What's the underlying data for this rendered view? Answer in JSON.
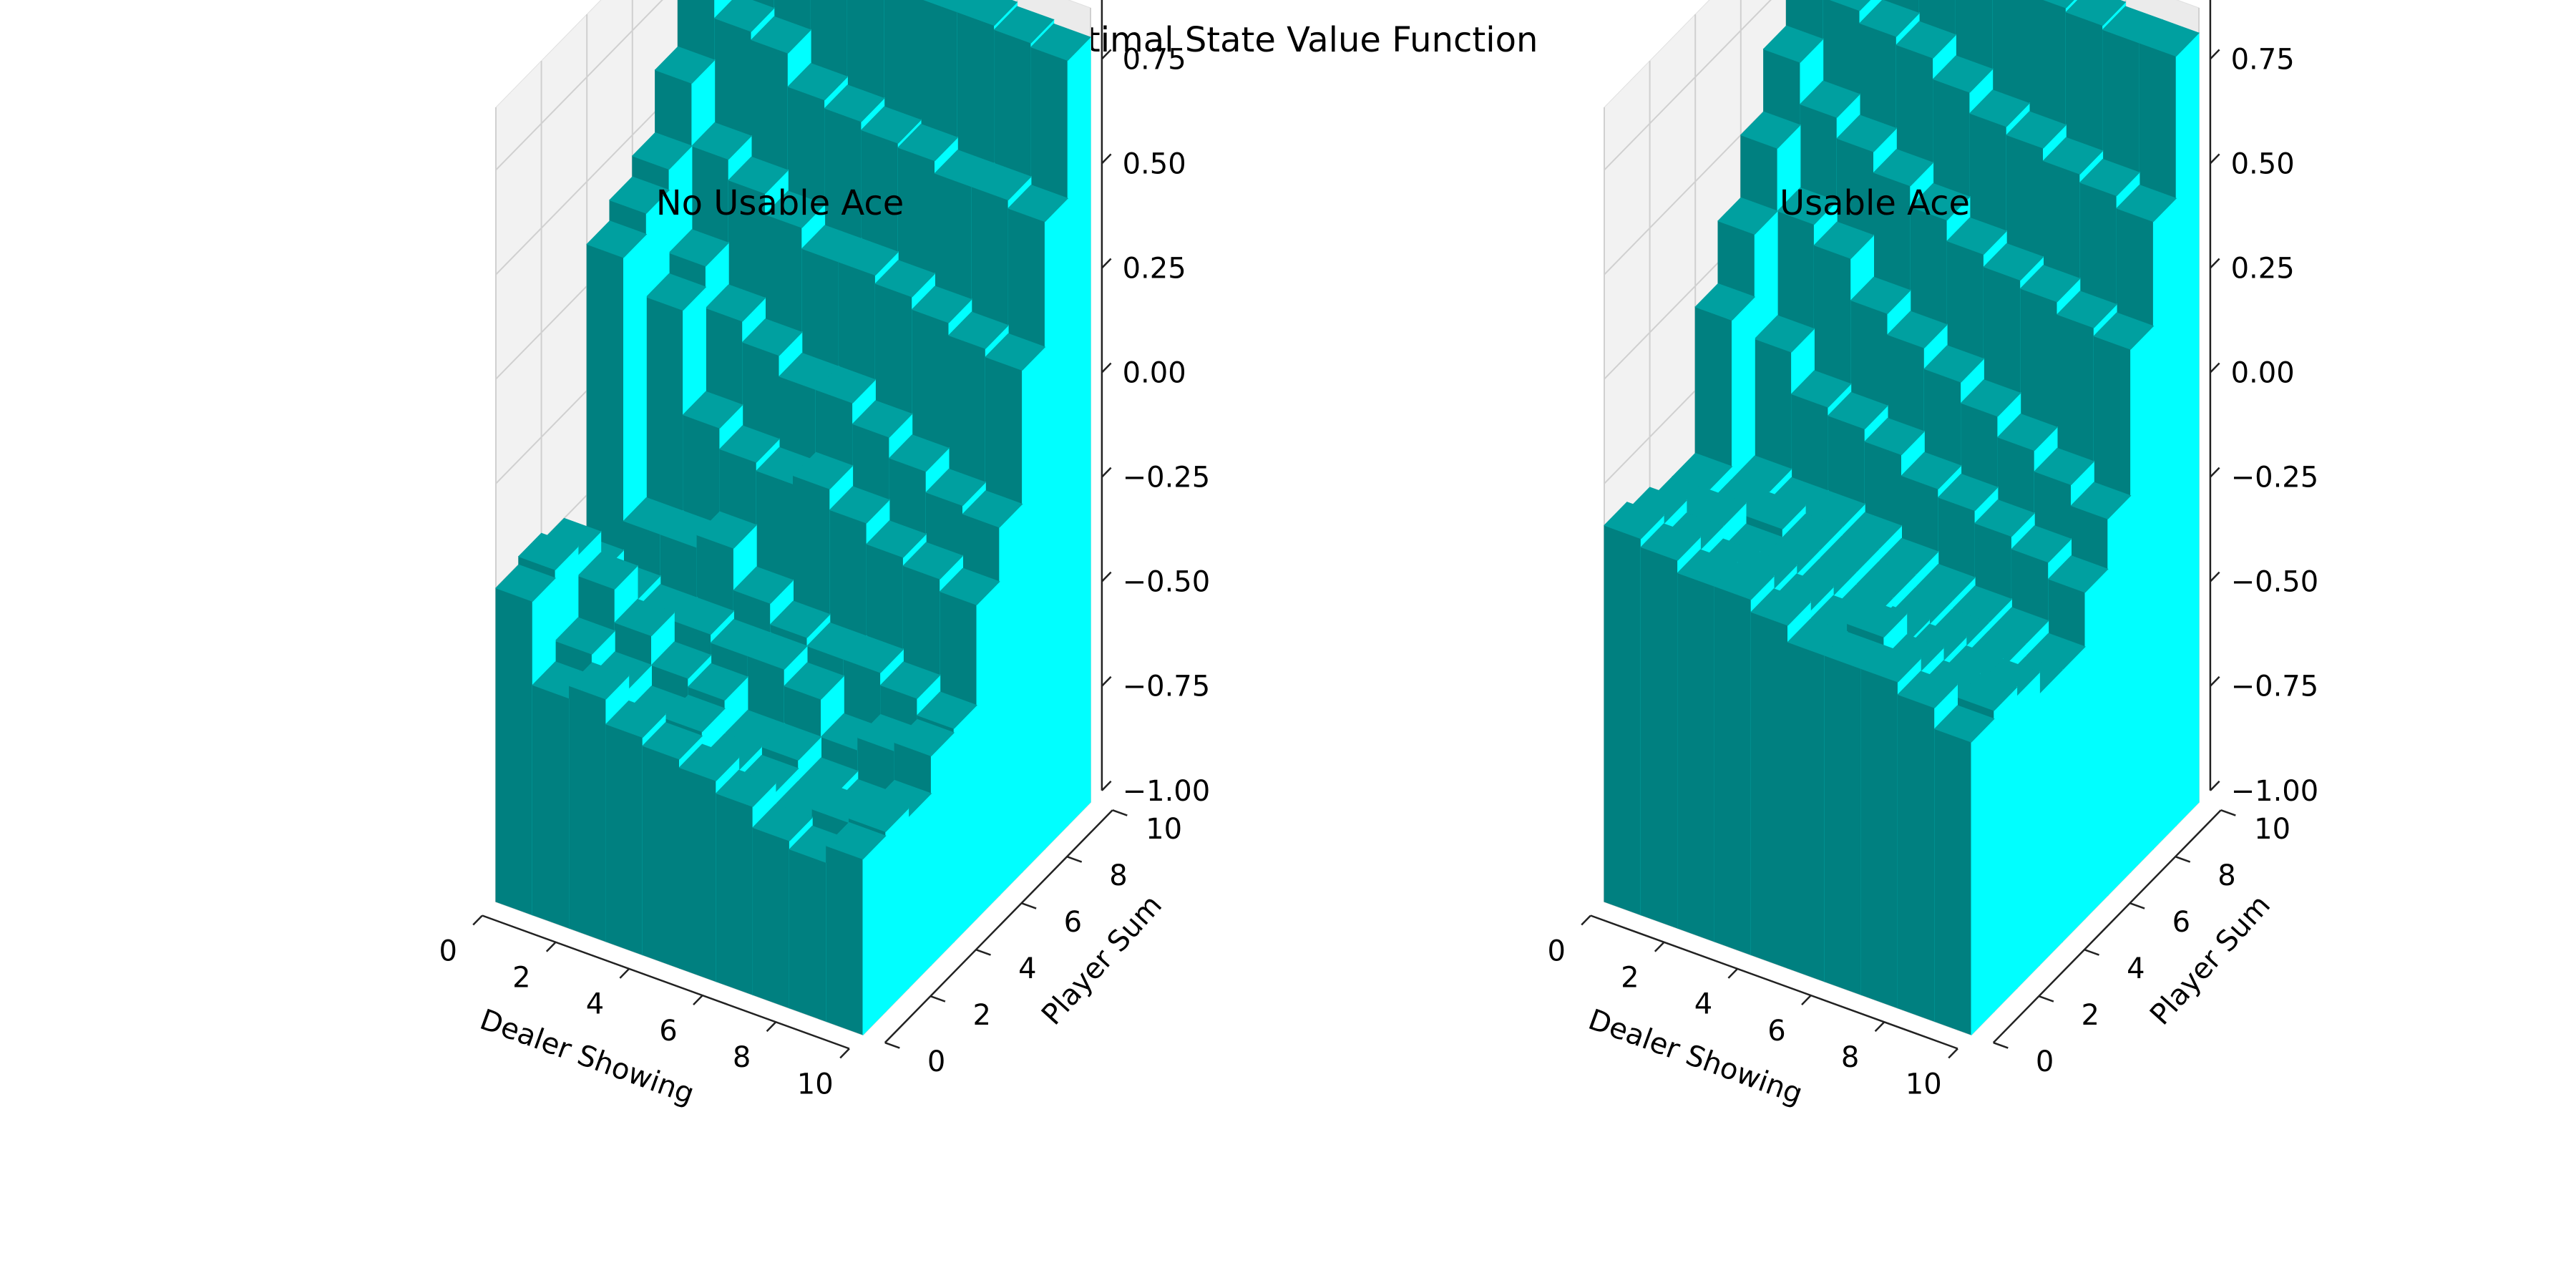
{
  "figure": {
    "title": "Optimal State Value Function"
  },
  "chart_data": [
    {
      "type": "bar3d",
      "title": "No Usable Ace",
      "xlabel": "Dealer Showing",
      "ylabel": "Player Sum",
      "zlabel": "",
      "xlim": [
        0,
        10
      ],
      "ylim": [
        0,
        10
      ],
      "zlim": [
        -1.0,
        0.9
      ],
      "xticks": [
        "0",
        "2",
        "4",
        "6",
        "8",
        "10"
      ],
      "yticks": [
        "0",
        "2",
        "4",
        "6",
        "8",
        "10"
      ],
      "zticks": [
        "−1.00",
        "−0.75",
        "−0.50",
        "−0.25",
        "0.00",
        "0.25",
        "0.50",
        "0.75"
      ],
      "colors": {
        "x_face": "#008080",
        "y_face": "#00ffff",
        "top": "#00a0a0"
      },
      "values": [
        [
          -0.25,
          -0.45,
          -0.42,
          -0.48,
          -0.5,
          -0.52,
          -0.55,
          -0.6,
          -0.62,
          -0.58
        ],
        [
          -0.23,
          -0.4,
          -0.45,
          -0.5,
          -0.49,
          -0.55,
          -0.57,
          -0.6,
          -0.58,
          -0.57
        ],
        [
          -0.25,
          -0.3,
          -0.38,
          -0.45,
          -0.47,
          -0.55,
          -0.55,
          -0.6,
          -0.62,
          -0.59
        ],
        [
          -0.35,
          -0.38,
          -0.4,
          -0.4,
          -0.42,
          -0.42,
          -0.46,
          -0.55,
          -0.52,
          -0.5
        ],
        [
          0.35,
          -0.28,
          -0.28,
          -0.25,
          -0.35,
          -0.4,
          -0.42,
          -0.42,
          -0.45,
          -0.49
        ],
        [
          0.4,
          0.2,
          -0.05,
          -0.1,
          -0.12,
          -0.1,
          -0.15,
          -0.2,
          -0.22,
          -0.25
        ],
        [
          0.45,
          0.25,
          0.15,
          0.1,
          0.05,
          0.05,
          0.0,
          -0.05,
          -0.1,
          -0.12
        ],
        [
          0.6,
          0.45,
          0.4,
          0.35,
          0.3,
          0.3,
          0.28,
          0.25,
          0.22,
          0.2
        ],
        [
          0.85,
          0.7,
          0.68,
          0.6,
          0.58,
          0.56,
          0.55,
          0.52,
          0.52,
          0.5
        ],
        [
          0.92,
          0.91,
          0.9,
          0.88,
          0.87,
          0.87,
          0.85,
          0.85,
          0.84,
          0.83
        ]
      ]
    },
    {
      "type": "bar3d",
      "title": "Usable Ace",
      "xlabel": "Dealer Showing",
      "ylabel": "Player Sum",
      "zlabel": "",
      "xlim": [
        0,
        10
      ],
      "ylim": [
        0,
        10
      ],
      "zlim": [
        -1.0,
        0.9
      ],
      "xticks": [
        "0",
        "2",
        "4",
        "6",
        "8",
        "10"
      ],
      "yticks": [
        "0",
        "2",
        "4",
        "6",
        "8",
        "10"
      ],
      "zticks": [
        "−1.00",
        "−0.75",
        "−0.50",
        "−0.25",
        "0.00",
        "0.25",
        "0.50",
        "0.75"
      ],
      "colors": {
        "x_face": "#008080",
        "y_face": "#00ffff",
        "top": "#00a0a0"
      },
      "values": [
        [
          -0.1,
          -0.12,
          -0.15,
          -0.15,
          -0.18,
          -0.22,
          -0.22,
          -0.22,
          -0.25,
          -0.3
        ],
        [
          -0.12,
          -0.15,
          -0.18,
          -0.18,
          -0.2,
          -0.22,
          -0.2,
          -0.25,
          -0.28,
          -0.28
        ],
        [
          -0.15,
          -0.15,
          -0.2,
          -0.2,
          -0.22,
          -0.25,
          -0.27,
          -0.28,
          -0.3,
          -0.3
        ],
        [
          -0.15,
          -0.18,
          -0.18,
          -0.2,
          -0.22,
          -0.25,
          -0.28,
          -0.3,
          -0.32,
          -0.35
        ],
        [
          0.2,
          -0.18,
          -0.2,
          -0.2,
          -0.22,
          -0.25,
          -0.28,
          -0.3,
          -0.32,
          -0.35
        ],
        [
          0.35,
          0.1,
          0.0,
          -0.02,
          -0.05,
          -0.1,
          -0.12,
          -0.15,
          -0.18,
          -0.22
        ],
        [
          0.5,
          0.35,
          0.3,
          0.2,
          0.15,
          0.1,
          0.05,
          0.0,
          -0.05,
          -0.1
        ],
        [
          0.65,
          0.55,
          0.5,
          0.45,
          0.4,
          0.35,
          0.32,
          0.3,
          0.27,
          0.25
        ],
        [
          0.85,
          0.75,
          0.72,
          0.7,
          0.65,
          0.6,
          0.58,
          0.55,
          0.53,
          0.5
        ],
        [
          0.92,
          0.91,
          0.9,
          0.89,
          0.88,
          0.87,
          0.86,
          0.85,
          0.84,
          0.84
        ]
      ]
    }
  ]
}
